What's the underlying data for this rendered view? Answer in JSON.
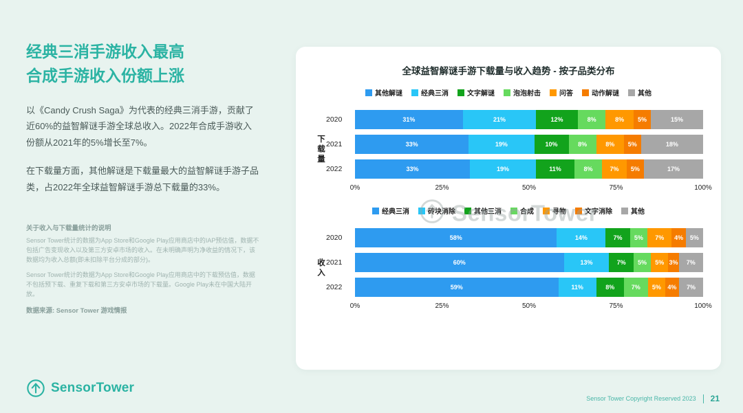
{
  "page": {
    "background": "#e8f3ef",
    "accent_teal": "#2bb3a3"
  },
  "left_panel": {
    "title_line1": "经典三消手游收入最高",
    "title_line2": "合成手游收入份额上涨",
    "paragraphs": [
      "以《Candy Crush Saga》为代表的经典三消手游，贡献了近60%的益智解谜手游全球总收入。2022年合成手游收入份额从2021年的5%增长至7%。",
      "在下载量方面，其他解谜是下载量最大的益智解谜手游子品类，占2022年全球益智解谜手游总下载量的33%。"
    ],
    "notes_title": "关于收入与下载量统计的说明",
    "notes": [
      "Sensor Tower统计的数据为App Store和Google Play应用商店中的IAP预估值，数据不包括广告变现收入以及第三方安卓市场的收入。在未明确声明为净收益的情况下，该数据均为收入总额(即未扣除平台分成的部分)。",
      "Sensor Tower统计的数据为App Store和Google Play应用商店中的下载预估值，数据不包括预下载、重复下载和第三方安卓市场的下载量。Google Play未在中国大陆开放。"
    ],
    "source": "数据来源: Sensor Tower 游戏情报",
    "logo_text": "SensorTower",
    "logo_icon": "sensor-tower-logo-icon"
  },
  "chart_card": {
    "title": "全球益智解谜手游下载量与收入趋势 - 按子品类分布",
    "watermark": "SensorTower",
    "watermark_icon": "sensor-tower-watermark-icon"
  },
  "chart_data": [
    {
      "type": "bar",
      "stacked": true,
      "orientation": "horizontal",
      "group_label": "下载量",
      "categories": [
        "2020",
        "2021",
        "2022"
      ],
      "series": [
        {
          "name": "其他解谜",
          "color": "#2E9BF0",
          "values": [
            31,
            33,
            33
          ]
        },
        {
          "name": "经典三消",
          "color": "#29C6F7",
          "values": [
            21,
            19,
            19
          ]
        },
        {
          "name": "文字解谜",
          "color": "#12A31C",
          "values": [
            12,
            10,
            11
          ]
        },
        {
          "name": "泡泡射击",
          "color": "#66DA5E",
          "values": [
            8,
            8,
            8
          ]
        },
        {
          "name": "问答",
          "color": "#FF9800",
          "values": [
            8,
            8,
            7
          ]
        },
        {
          "name": "动作解谜",
          "color": "#F57C00",
          "values": [
            5,
            5,
            5
          ]
        },
        {
          "name": "其他",
          "color": "#A7A7A7",
          "values": [
            15,
            18,
            17
          ]
        }
      ],
      "xlim": [
        0,
        100
      ],
      "x_ticks": [
        "0%",
        "25%",
        "50%",
        "75%",
        "100%"
      ],
      "legend_position": "top",
      "grid": false
    },
    {
      "type": "bar",
      "stacked": true,
      "orientation": "horizontal",
      "group_label": "收入",
      "categories": [
        "2020",
        "2021",
        "2022"
      ],
      "series": [
        {
          "name": "经典三消",
          "color": "#2E9BF0",
          "values": [
            58,
            60,
            59
          ]
        },
        {
          "name": "砖块消除",
          "color": "#29C6F7",
          "values": [
            14,
            13,
            11
          ]
        },
        {
          "name": "其他三消",
          "color": "#12A31C",
          "values": [
            7,
            7,
            8
          ]
        },
        {
          "name": "合成",
          "color": "#66DA5E",
          "values": [
            5,
            5,
            7
          ]
        },
        {
          "name": "寻物",
          "color": "#FF9800",
          "values": [
            7,
            5,
            5
          ]
        },
        {
          "name": "文字消除",
          "color": "#F57C00",
          "values": [
            4,
            3,
            4
          ]
        },
        {
          "name": "其他",
          "color": "#A7A7A7",
          "values": [
            5,
            7,
            7
          ]
        }
      ],
      "xlim": [
        0,
        100
      ],
      "x_ticks": [
        "0%",
        "25%",
        "50%",
        "75%",
        "100%"
      ],
      "legend_position": "top",
      "grid": false
    }
  ],
  "footer": {
    "copyright": "Sensor Tower Copyright Reserved 2023",
    "page_number": "21"
  }
}
